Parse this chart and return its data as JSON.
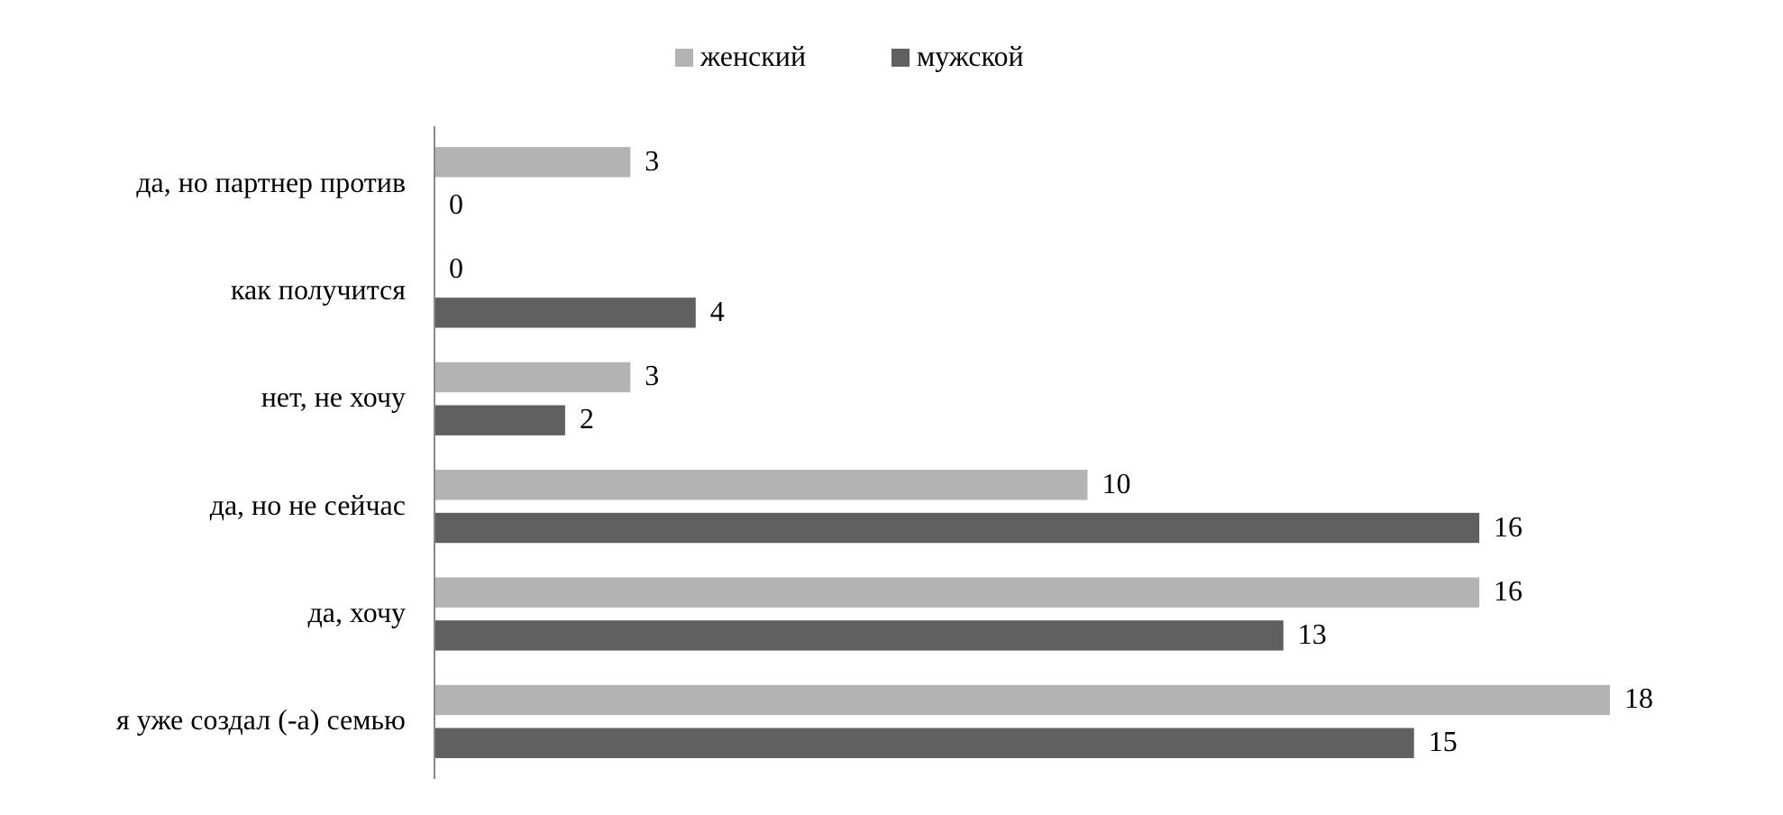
{
  "chart_data": {
    "type": "bar",
    "orientation": "horizontal",
    "categories": [
      "да, но партнер против",
      "как получится",
      "нет, не хочу",
      "да, но не сейчас",
      "да, хочу",
      "я уже создал (-а) семью"
    ],
    "series": [
      {
        "name": "женский",
        "color": "#b3b3b3",
        "values": [
          3,
          0,
          3,
          10,
          16,
          18
        ]
      },
      {
        "name": "мужской",
        "color": "#5f5f5f",
        "values": [
          0,
          4,
          2,
          16,
          13,
          15
        ]
      }
    ],
    "data_labels": true,
    "legend": "top",
    "grid": false
  }
}
